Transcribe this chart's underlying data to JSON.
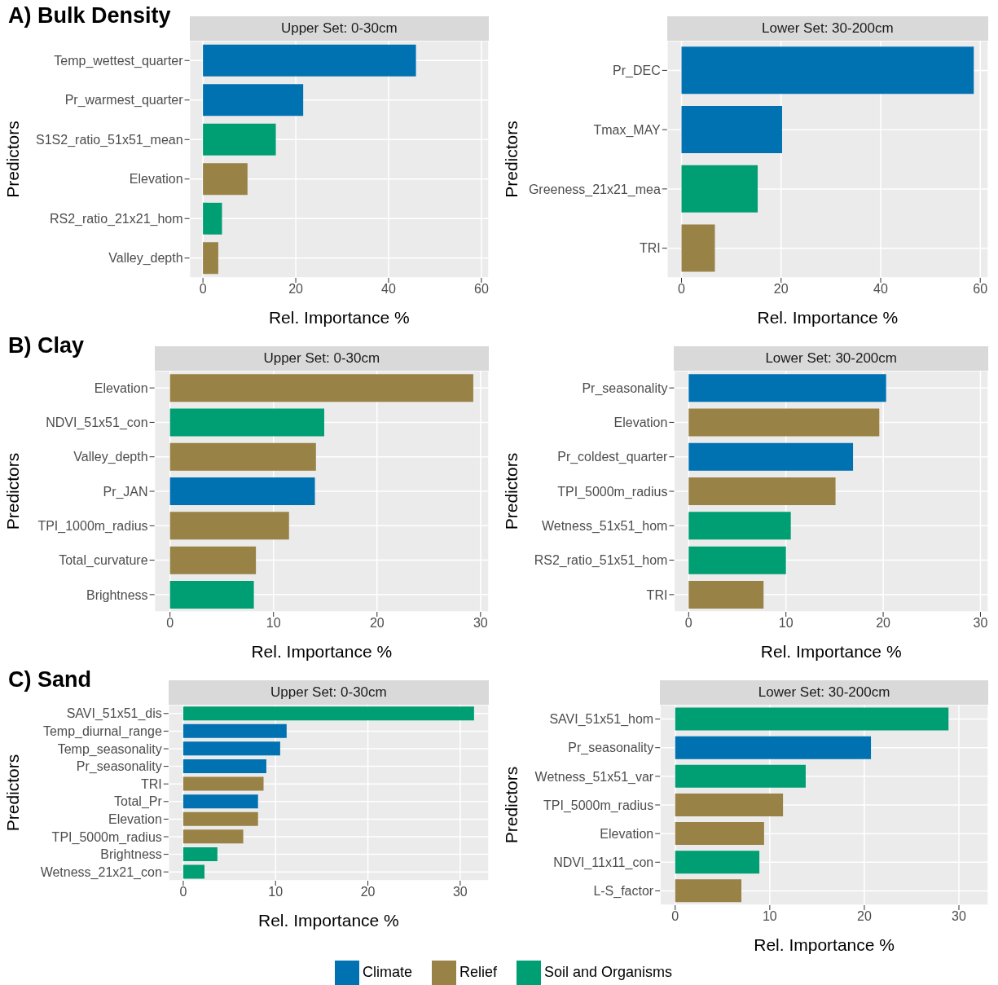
{
  "chart_data": [
    {
      "type": "bar",
      "orientation": "horizontal",
      "stacked": true,
      "title": "A) Bulk Density",
      "subtitle": "Upper Set: 0-30cm",
      "xlabel": "Rel. Importance %",
      "ylabel": "Predictors",
      "grid": true,
      "categories": [
        "Temp_wettest_quarter",
        "Pr_warmest_quarter",
        "S1S2_ratio_51x51_mean",
        "Elevation",
        "RS2_ratio_21x21_hom",
        "Valley_depth"
      ],
      "xlim": [
        -2.9,
        61.6
      ],
      "xticks": [
        0,
        20,
        40,
        60
      ],
      "series": [
        {
          "color": "#0072b2",
          "values": [
            45.9,
            21.6,
            null,
            null,
            null,
            null
          ]
        },
        {
          "color": "#998246",
          "values": [
            null,
            null,
            null,
            9.6,
            null,
            3.3
          ]
        },
        {
          "color": "#009e73",
          "values": [
            null,
            null,
            15.7,
            null,
            4.1,
            null
          ]
        }
      ]
    },
    {
      "type": "bar",
      "orientation": "horizontal",
      "stacked": true,
      "subtitle": "Lower Set: 30-200cm",
      "xlabel": "Rel. Importance %",
      "ylabel": "Predictors",
      "grid": true,
      "categories": [
        "Pr_DEC",
        "Tmax_MAY",
        "Greeness_21x21_mea",
        "TRI"
      ],
      "xlim": [
        -2.9,
        61.6
      ],
      "xticks": [
        0,
        20,
        40,
        60
      ],
      "series": [
        {
          "color": "#0072b2",
          "values": [
            58.7,
            20.2,
            null,
            null
          ]
        },
        {
          "color": "#998246",
          "values": [
            null,
            null,
            null,
            6.7
          ]
        },
        {
          "color": "#009e73",
          "values": [
            null,
            null,
            15.3,
            null
          ]
        }
      ]
    },
    {
      "type": "bar",
      "orientation": "horizontal",
      "stacked": true,
      "title": "B) Clay",
      "subtitle": "Upper Set: 0-30cm",
      "xlabel": "Rel. Importance %",
      "ylabel": "Predictors",
      "grid": true,
      "categories": [
        "Elevation",
        "NDVI_51x51_con",
        "Valley_depth",
        "Pr_JAN",
        "TPI_1000m_radius",
        "Total_curvature",
        "Brightness"
      ],
      "xlim": [
        -1.5,
        30.8
      ],
      "xticks": [
        0,
        10,
        20,
        30
      ],
      "series": [
        {
          "color": "#0072b2",
          "values": [
            null,
            null,
            null,
            14.0,
            null,
            null,
            null
          ]
        },
        {
          "color": "#998246",
          "values": [
            29.3,
            null,
            14.1,
            null,
            11.5,
            8.3,
            null
          ]
        },
        {
          "color": "#009e73",
          "values": [
            null,
            14.9,
            null,
            null,
            null,
            null,
            8.1
          ]
        }
      ]
    },
    {
      "type": "bar",
      "orientation": "horizontal",
      "stacked": true,
      "subtitle": "Lower Set: 30-200cm",
      "xlabel": "Rel. Importance %",
      "ylabel": "Predictors",
      "grid": true,
      "categories": [
        "Pr_seasonality",
        "Elevation",
        "Pr_coldest_quarter",
        "TPI_5000m_radius",
        "Wetness_51x51_hom",
        "RS2_ratio_51x51_hom",
        "TRI"
      ],
      "xlim": [
        -1.5,
        30.8
      ],
      "xticks": [
        0,
        10,
        20,
        30
      ],
      "series": [
        {
          "color": "#0072b2",
          "values": [
            20.3,
            null,
            16.9,
            null,
            null,
            null,
            null
          ]
        },
        {
          "color": "#998246",
          "values": [
            null,
            19.6,
            null,
            15.1,
            null,
            null,
            7.7
          ]
        },
        {
          "color": "#009e73",
          "values": [
            null,
            null,
            null,
            null,
            10.5,
            10.0,
            null
          ]
        }
      ]
    },
    {
      "type": "bar",
      "orientation": "horizontal",
      "stacked": true,
      "title": "C) Sand",
      "subtitle": "Upper Set: 0-30cm",
      "xlabel": "Rel. Importance %",
      "ylabel": "Predictors",
      "grid": true,
      "legend": "bottom",
      "categories": [
        "SAVI_51x51_dis",
        "Temp_diurnal_range",
        "Temp_seasonality",
        "Pr_seasonality",
        "TRI",
        "Total_Pr",
        "Elevation",
        "TPI_5000m_radius",
        "Brightness",
        "Wetness_21x21_con"
      ],
      "xlim": [
        -1.6,
        33.1
      ],
      "xticks": [
        0,
        10,
        20,
        30
      ],
      "series": [
        {
          "name": "Climate",
          "color": "#0072b2",
          "values": [
            null,
            11.2,
            10.5,
            9.0,
            null,
            8.1,
            null,
            null,
            null,
            null
          ]
        },
        {
          "name": "Relief",
          "color": "#998246",
          "values": [
            null,
            null,
            null,
            null,
            8.7,
            null,
            8.1,
            6.5,
            null,
            null
          ]
        },
        {
          "name": "Soil and Organisms",
          "color": "#009e73",
          "values": [
            31.5,
            null,
            null,
            null,
            null,
            null,
            null,
            null,
            3.7,
            2.3
          ]
        }
      ]
    },
    {
      "type": "bar",
      "orientation": "horizontal",
      "stacked": true,
      "subtitle": "Lower Set: 30-200cm",
      "xlabel": "Rel. Importance %",
      "ylabel": "Predictors",
      "grid": true,
      "categories": [
        "SAVI_51x51_hom",
        "Pr_seasonality",
        "Wetness_51x51_var",
        "TPI_5000m_radius",
        "Elevation",
        "NDVI_11x11_con",
        "L-S_factor"
      ],
      "xlim": [
        -1.6,
        33.1
      ],
      "xticks": [
        0,
        10,
        20,
        30
      ],
      "series": [
        {
          "color": "#0072b2",
          "values": [
            null,
            20.7,
            null,
            null,
            null,
            null,
            null
          ]
        },
        {
          "color": "#998246",
          "values": [
            null,
            null,
            null,
            11.4,
            9.4,
            null,
            7.0
          ]
        },
        {
          "color": "#009e73",
          "values": [
            28.9,
            null,
            13.8,
            null,
            null,
            8.9,
            null
          ]
        }
      ]
    }
  ]
}
